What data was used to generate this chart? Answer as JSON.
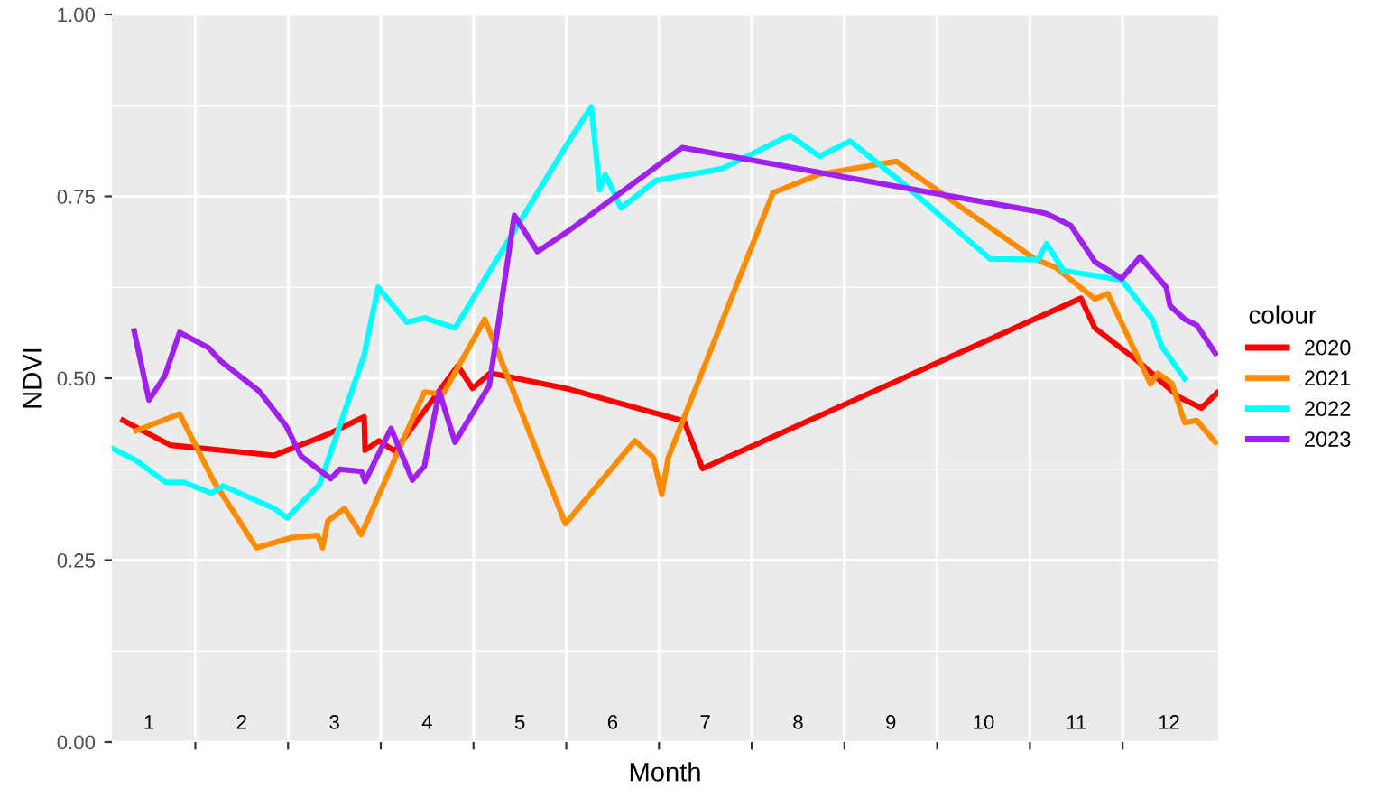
{
  "chart_data": {
    "type": "line",
    "xlabel": "Month",
    "ylabel": "NDVI",
    "legend_title": "colour",
    "legend": "right",
    "grid": true,
    "line_style": "solid",
    "marker": "none",
    "xlim": [
      0.6,
      12.53
    ],
    "xticks": [
      1,
      {
        "value": 1.5,
        "label": null
      },
      2,
      {
        "value": 2.5,
        "label": null
      },
      3,
      {
        "value": 3.5,
        "label": null
      },
      4,
      {
        "value": 4.5,
        "label": null
      },
      5,
      {
        "value": 5.5,
        "label": null
      },
      6,
      {
        "value": 6.5,
        "label": null
      },
      7,
      {
        "value": 7.5,
        "label": null
      },
      8,
      {
        "value": 8.5,
        "label": null
      },
      9,
      {
        "value": 9.5,
        "label": null
      },
      10,
      {
        "value": 10.5,
        "label": null
      },
      11,
      {
        "value": 11.5,
        "label": null
      },
      12
    ],
    "ylim": [
      0,
      1
    ],
    "yticks": [
      {
        "value": 0,
        "label": "0.00"
      },
      {
        "value": 0.25,
        "label": "0.25"
      },
      {
        "value": 0.5,
        "label": "0.50"
      },
      {
        "value": 0.75,
        "label": "0.75"
      },
      {
        "value": 1,
        "label": "1.00"
      }
    ],
    "series": [
      {
        "name": "2020",
        "color": "#ff0000",
        "x": [
          0.72,
          1.23,
          2.35,
          2.93,
          3.32,
          3.33,
          3.48,
          3.65,
          4.33,
          4.49,
          4.68,
          5.53,
          6.77,
          6.97,
          9.13,
          11.05,
          11.2,
          11.66,
          12.11,
          12.35,
          12.52
        ],
        "values": [
          0.442,
          0.408,
          0.394,
          0.423,
          0.447,
          0.401,
          0.414,
          0.4,
          0.517,
          0.486,
          0.507,
          0.485,
          0.441,
          0.376,
          0.5,
          0.61,
          0.569,
          0.524,
          0.474,
          0.459,
          0.48
        ]
      },
      {
        "name": "2021",
        "color": "#ff8c00",
        "x": [
          0.86,
          1.33,
          1.7,
          2.16,
          2.54,
          2.82,
          2.87,
          2.93,
          3.11,
          3.29,
          3.97,
          4.17,
          4.62,
          4.75,
          5.49,
          6.24,
          6.44,
          6.53,
          6.6,
          7.73,
          8.22,
          9.06,
          10.55,
          10.78,
          11.2,
          11.34,
          11.8,
          11.88,
          12.03,
          12.17,
          12.3,
          12.5
        ],
        "values": [
          0.428,
          0.451,
          0.358,
          0.267,
          0.281,
          0.284,
          0.267,
          0.304,
          0.321,
          0.285,
          0.481,
          0.478,
          0.581,
          0.54,
          0.3,
          0.414,
          0.391,
          0.34,
          0.391,
          0.755,
          0.78,
          0.798,
          0.664,
          0.652,
          0.609,
          0.616,
          0.492,
          0.507,
          0.493,
          0.439,
          0.442,
          0.412
        ]
      },
      {
        "name": "2022",
        "color": "#00ffff",
        "x": [
          0.6,
          0.86,
          1.18,
          1.38,
          1.67,
          1.8,
          2.35,
          2.49,
          2.84,
          3.32,
          3.47,
          3.78,
          3.97,
          4.3,
          5.53,
          5.77,
          5.86,
          5.92,
          6.09,
          6.47,
          7.18,
          7.91,
          8.23,
          8.56,
          9.13,
          10.07,
          10.59,
          10.68,
          10.86,
          11.49,
          11.82,
          11.92,
          12.17
        ],
        "values": [
          0.404,
          0.387,
          0.357,
          0.357,
          0.342,
          0.352,
          0.321,
          0.308,
          0.354,
          0.532,
          0.625,
          0.577,
          0.583,
          0.569,
          0.826,
          0.873,
          0.759,
          0.78,
          0.734,
          0.772,
          0.788,
          0.834,
          0.805,
          0.826,
          0.768,
          0.664,
          0.663,
          0.685,
          0.648,
          0.635,
          0.581,
          0.544,
          0.499
        ]
      },
      {
        "name": "2023",
        "color": "#a020f0",
        "x": [
          0.84,
          1.0,
          1.17,
          1.33,
          1.64,
          1.77,
          2.19,
          2.48,
          2.64,
          2.96,
          3.06,
          3.29,
          3.33,
          3.61,
          3.84,
          3.97,
          4.13,
          4.3,
          4.67,
          4.94,
          5.19,
          5.53,
          6.75,
          9.13,
          10.55,
          10.68,
          10.94,
          11.2,
          11.49,
          11.69,
          11.97,
          12.01,
          12.17,
          12.3,
          12.5
        ],
        "values": [
          0.565,
          0.47,
          0.503,
          0.563,
          0.542,
          0.524,
          0.482,
          0.434,
          0.393,
          0.362,
          0.375,
          0.372,
          0.358,
          0.431,
          0.36,
          0.379,
          0.482,
          0.412,
          0.49,
          0.724,
          0.674,
          0.703,
          0.817,
          0.762,
          0.73,
          0.726,
          0.71,
          0.66,
          0.637,
          0.667,
          0.625,
          0.6,
          0.581,
          0.573,
          0.534
        ]
      }
    ]
  }
}
